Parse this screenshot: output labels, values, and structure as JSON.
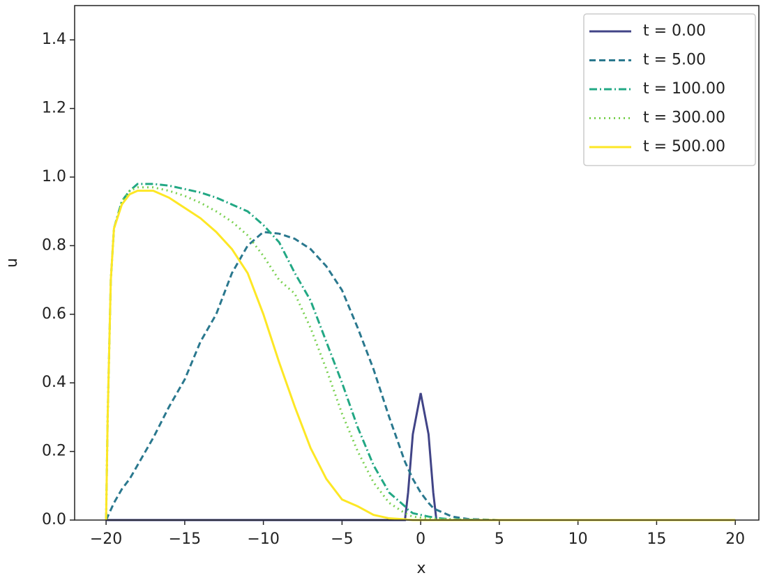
{
  "chart_data": {
    "type": "line",
    "xlabel": "x",
    "ylabel": "u",
    "x": [
      -20,
      -19.9,
      -19.7,
      -19.5,
      -19,
      -18.5,
      -18,
      -17,
      -16,
      -15,
      -14,
      -13,
      -12,
      -11,
      -10,
      -9,
      -8,
      -7,
      -6,
      -5,
      -4,
      -3,
      -2,
      -1,
      -0.8,
      -0.5,
      0,
      0.5,
      0.8,
      1,
      2,
      3,
      5,
      10,
      15,
      20
    ],
    "series": [
      {
        "name": "t = 0.00",
        "color": "#414487",
        "dash": "solid",
        "values": [
          0,
          0,
          0,
          0,
          0,
          0,
          0,
          0,
          0,
          0,
          0,
          0,
          0,
          0,
          0,
          0,
          0,
          0,
          0,
          0,
          0,
          0,
          0,
          0,
          0.08,
          0.25,
          0.37,
          0.25,
          0.08,
          0,
          0,
          0,
          0,
          0,
          0,
          0
        ]
      },
      {
        "name": "t = 5.00",
        "color": "#2a788e",
        "dash": "dashed",
        "values": [
          0,
          0.01,
          0.03,
          0.05,
          0.09,
          0.12,
          0.16,
          0.24,
          0.33,
          0.41,
          0.52,
          0.6,
          0.72,
          0.8,
          0.84,
          0.835,
          0.82,
          0.79,
          0.74,
          0.67,
          0.56,
          0.44,
          0.3,
          0.17,
          0.15,
          0.12,
          0.08,
          0.05,
          0.035,
          0.03,
          0.01,
          0.003,
          0,
          0,
          0,
          0
        ]
      },
      {
        "name": "t = 100.00",
        "color": "#22a884",
        "dash": "dashdot",
        "values": [
          0,
          0.3,
          0.7,
          0.85,
          0.93,
          0.96,
          0.98,
          0.98,
          0.975,
          0.965,
          0.955,
          0.94,
          0.92,
          0.9,
          0.86,
          0.81,
          0.72,
          0.64,
          0.52,
          0.4,
          0.27,
          0.16,
          0.08,
          0.04,
          0.03,
          0.02,
          0.015,
          0.01,
          0.008,
          0.006,
          0.002,
          0.001,
          0,
          0,
          0,
          0
        ]
      },
      {
        "name": "t = 300.00",
        "color": "#7ad151",
        "dash": "dotted",
        "values": [
          0,
          0.3,
          0.7,
          0.85,
          0.93,
          0.96,
          0.97,
          0.97,
          0.96,
          0.945,
          0.925,
          0.9,
          0.87,
          0.83,
          0.77,
          0.7,
          0.66,
          0.56,
          0.44,
          0.31,
          0.2,
          0.11,
          0.05,
          0.02,
          0.015,
          0.01,
          0.007,
          0.005,
          0.003,
          0.002,
          0.001,
          0,
          0,
          0,
          0,
          0
        ]
      },
      {
        "name": "t = 500.00",
        "color": "#fde725",
        "dash": "solid",
        "values": [
          0,
          0.3,
          0.7,
          0.85,
          0.92,
          0.95,
          0.96,
          0.96,
          0.94,
          0.91,
          0.88,
          0.84,
          0.79,
          0.72,
          0.6,
          0.46,
          0.33,
          0.21,
          0.12,
          0.06,
          0.04,
          0.015,
          0.005,
          0.002,
          0.001,
          0,
          0,
          0,
          0,
          0,
          0,
          0,
          0,
          0,
          0,
          0
        ]
      }
    ],
    "xlim": [
      -22,
      21.5
    ],
    "ylim": [
      0,
      1.5
    ],
    "xticks": [
      {
        "value": -20,
        "label": "−20"
      },
      {
        "value": -15,
        "label": "−15"
      },
      {
        "value": -10,
        "label": "−10"
      },
      {
        "value": -5,
        "label": "−5"
      },
      0,
      5,
      10,
      15,
      20
    ],
    "yticks": [
      {
        "value": 0,
        "label": "0.0"
      },
      0.2,
      0.4,
      0.6,
      0.8,
      {
        "value": 1,
        "label": "1.0"
      },
      1.2,
      1.4
    ],
    "legend": "upper right"
  }
}
